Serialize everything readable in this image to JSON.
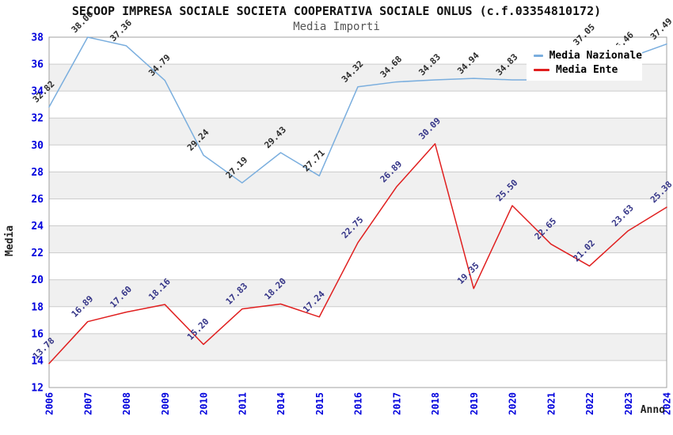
{
  "chart_data": {
    "type": "line",
    "title": "SECOOP IMPRESA SOCIALE SOCIETA COOPERATIVA SOCIALE ONLUS (c.f.03354810172)",
    "subtitle": "Media Importi",
    "xlabel": "Anno",
    "ylabel": "Media",
    "ylim": [
      12,
      38
    ],
    "y_tick_step": 2,
    "grid": "horizontal-gridlines-with-alternating-bands",
    "legend_position": "top-right",
    "categories": [
      "2006",
      "2007",
      "2008",
      "2009",
      "2010",
      "2011",
      "2014",
      "2015",
      "2016",
      "2017",
      "2018",
      "2019",
      "2020",
      "2021",
      "2022",
      "2023",
      "2024"
    ],
    "series": [
      {
        "name": "Media Nazionale",
        "color": "#7aaede",
        "label_color": "#2b2b2b",
        "values": [
          32.82,
          38.0,
          37.36,
          34.79,
          29.24,
          27.19,
          29.43,
          27.71,
          34.32,
          34.68,
          34.83,
          34.94,
          34.83,
          34.83,
          37.05,
          36.46,
          37.49
        ],
        "labels": [
          "32.82",
          "38.00",
          "37.36",
          "34.79",
          "29.24",
          "27.19",
          "29.43",
          "27.71",
          "34.32",
          "34.68",
          "34.83",
          "34.94",
          "34.83",
          "",
          "37.05",
          "36.46",
          "37.49"
        ]
      },
      {
        "name": "Media Ente",
        "color": "#e01f1f",
        "label_color": "#343487",
        "values": [
          13.78,
          16.89,
          17.6,
          18.16,
          15.2,
          17.83,
          18.2,
          17.24,
          22.75,
          26.89,
          30.09,
          19.35,
          25.5,
          22.65,
          21.02,
          23.63,
          25.38
        ],
        "labels": [
          "13.78",
          "16.89",
          "17.60",
          "18.16",
          "15.20",
          "17.83",
          "18.20",
          "17.24",
          "22.75",
          "26.89",
          "30.09",
          "19.35",
          "25.50",
          "22.65",
          "21.02",
          "23.63",
          "25.38"
        ]
      }
    ],
    "colors": {
      "band_gray": "#f0f0f0",
      "band_white": "#ffffff",
      "gridline": "#cccccc",
      "plot_border": "#a0a0a0",
      "axis_tick_text": "#0000dd"
    }
  }
}
